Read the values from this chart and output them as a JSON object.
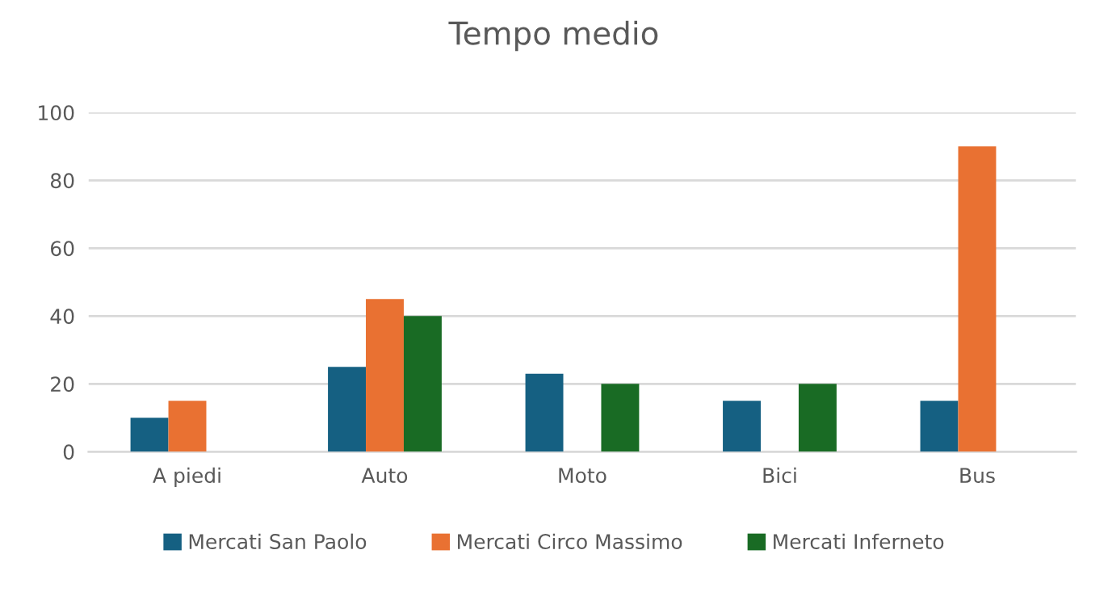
{
  "chart_data": {
    "type": "bar",
    "title": "Tempo medio",
    "categories": [
      "A piedi",
      "Auto",
      "Moto",
      "Bici",
      "Bus"
    ],
    "series": [
      {
        "name": "Mercati San Paolo",
        "color": "#156082",
        "values": [
          10,
          25,
          23,
          15,
          15
        ]
      },
      {
        "name": "Mercati Circo Massimo",
        "color": "#e97132",
        "values": [
          15,
          45,
          null,
          null,
          90
        ]
      },
      {
        "name": "Mercati Inferneto",
        "color": "#196b24",
        "values": [
          null,
          40,
          20,
          20,
          null
        ]
      }
    ],
    "ylim": [
      0,
      100
    ],
    "yticks": [
      0,
      20,
      40,
      60,
      80,
      100
    ],
    "grid": "y",
    "legend": "bottom"
  }
}
